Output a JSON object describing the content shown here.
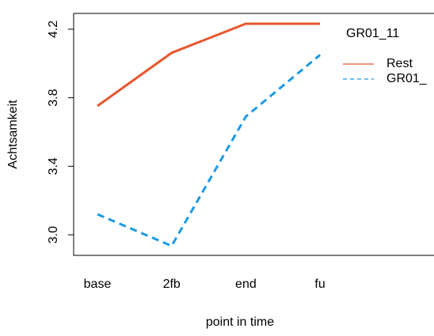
{
  "chart_data": {
    "type": "line",
    "x_label": "point in time",
    "y_label": "Achtsamkeit",
    "categories": [
      "base",
      "2fb",
      "end",
      "fu"
    ],
    "legend_title": "GR01_11",
    "series": [
      {
        "name": "Rest",
        "color": "#e8562e",
        "dash": false,
        "values": [
          3.752,
          4.062,
          4.232,
          4.232
        ]
      },
      {
        "name": "GR01_",
        "color": "#1b9ae6",
        "dash": true,
        "values": [
          3.12,
          2.935,
          3.69,
          4.05
        ]
      }
    ],
    "ylim": [
      2.88,
      4.292
    ],
    "yticks": [
      {
        "value": 3,
        "label": "3.0"
      },
      3.4,
      3.8,
      4.2
    ]
  }
}
